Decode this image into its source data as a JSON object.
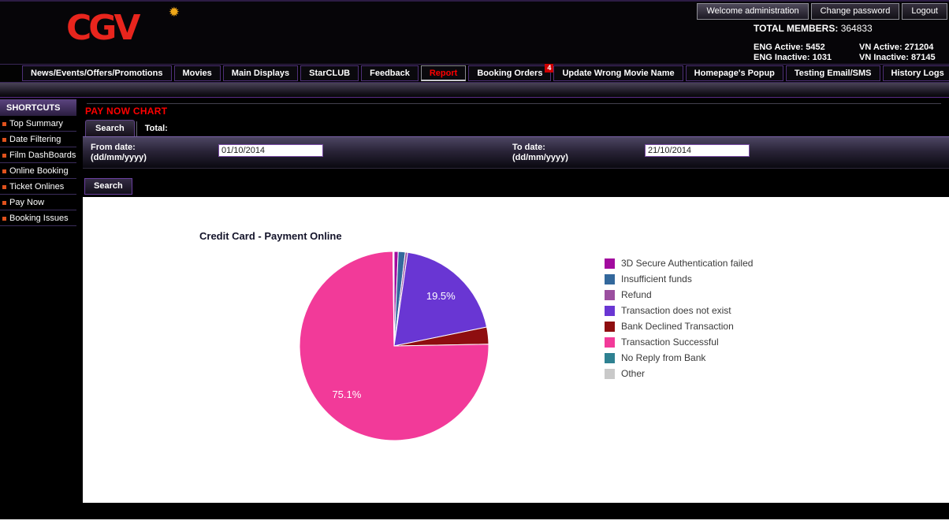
{
  "account_bar": {
    "tabs": [
      {
        "label": "Welcome administration",
        "active": true
      },
      {
        "label": "Change password",
        "active": false
      },
      {
        "label": "Logout",
        "active": false
      }
    ]
  },
  "header": {
    "logo_text": "CGV",
    "stats": {
      "total_members_label": "TOTAL MEMBERS:",
      "total_members_value": "364833",
      "eng_active": "ENG Active: 5452",
      "vn_active": "VN Active: 271204",
      "eng_inactive": "ENG Inactive: 1031",
      "vn_inactive": "VN Inactive: 87145"
    }
  },
  "nav": {
    "items": [
      {
        "label": "News/Events/Offers/Promotions"
      },
      {
        "label": "Movies"
      },
      {
        "label": "Main Displays"
      },
      {
        "label": "StarCLUB"
      },
      {
        "label": "Feedback"
      },
      {
        "label": "Report",
        "active": true
      },
      {
        "label": "Booking Orders",
        "badge": "4"
      },
      {
        "label": "Update Wrong Movie Name"
      },
      {
        "label": "Homepage's Popup"
      },
      {
        "label": "Testing Email/SMS"
      },
      {
        "label": "History Logs"
      }
    ]
  },
  "sidebar": {
    "title": "SHORTCUTS",
    "items": [
      "Top Summary",
      "Date Filtering",
      "Film DashBoards",
      "Online Booking",
      "Ticket Onlines",
      "Pay Now",
      "Booking Issues"
    ]
  },
  "main": {
    "page_title": "PAY NOW CHART",
    "tabs": [
      {
        "label": "Search",
        "active": true
      },
      {
        "label": "Total:",
        "active": false
      }
    ],
    "form": {
      "from_label": "From date:",
      "from_hint": "(dd/mm/yyyy)",
      "from_value": "01/10/2014",
      "to_label": "To date:",
      "to_hint": "(dd/mm/yyyy)",
      "to_value": "21/10/2014"
    },
    "search_button": "Search"
  },
  "chart_data": {
    "type": "pie",
    "title": "Credit Card - Payment Online",
    "legend_position": "right",
    "direction": "clockwise",
    "start_angle": "top",
    "labels": [
      "3D Secure Authentication failed",
      "Insufficient funds",
      "Refund",
      "Transaction does not exist",
      "Bank Declined Transaction",
      "Transaction Successful",
      "No Reply from Bank",
      "Other"
    ],
    "values_percent": [
      0.7,
      1.2,
      0.4,
      19.5,
      2.9,
      75.1,
      0.1,
      0.1
    ],
    "colors": [
      "#A20B9E",
      "#33689C",
      "#9B4F9F",
      "#6936D3",
      "#8E0E10",
      "#F23A99",
      "#2E8191",
      "#C9C9C9"
    ],
    "data_labels_shown": [
      "19.5%",
      "75.1%"
    ],
    "min_percent_for_label": 5
  },
  "theme": {
    "accent_purple": "#5c2d8a",
    "title_red": "#ff0000",
    "badge_red": "#cc0000",
    "logo_red": "#e8251d",
    "logo_star_orange": "#f0a818"
  }
}
